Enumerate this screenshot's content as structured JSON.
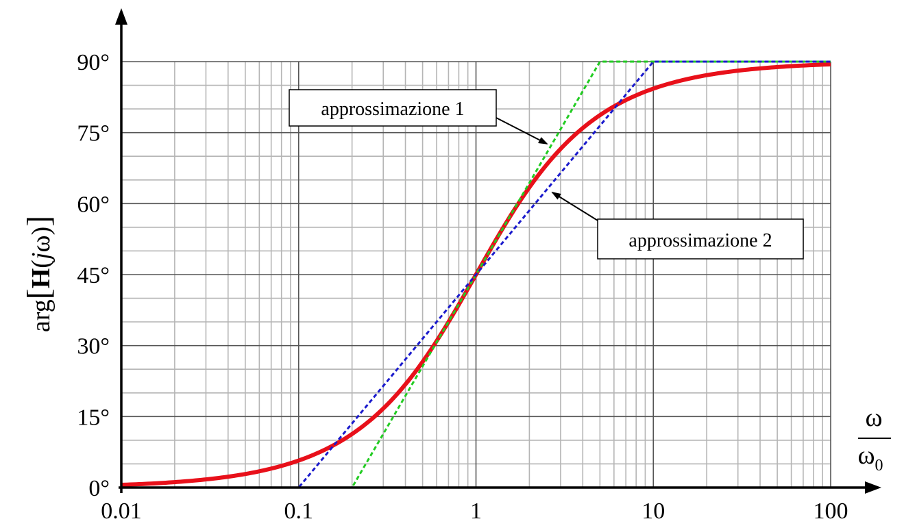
{
  "chart_data": {
    "type": "line",
    "xscale": "log",
    "xlim": [
      0.01,
      100
    ],
    "ylim": [
      0,
      90
    ],
    "grid": true,
    "ylabel": {
      "prefix": "arg",
      "lbracket": "[",
      "H": "H",
      "lparen": "(",
      "j": "j",
      "omega": "ω",
      "rparen": ")",
      "rbracket": "]"
    },
    "xlabel": {
      "numerator": "ω",
      "denominator": "ω",
      "subscript": "0"
    },
    "x_ticks": [
      {
        "value": 0.01,
        "label": "0.01"
      },
      {
        "value": 0.1,
        "label": "0.1"
      },
      {
        "value": 1,
        "label": "1"
      },
      {
        "value": 10,
        "label": "10"
      },
      {
        "value": 100,
        "label": "100"
      }
    ],
    "y_ticks": [
      {
        "value": 0,
        "label": "0°"
      },
      {
        "value": 15,
        "label": "15°"
      },
      {
        "value": 30,
        "label": "30°"
      },
      {
        "value": 45,
        "label": "45°"
      },
      {
        "value": 60,
        "label": "60°"
      },
      {
        "value": 75,
        "label": "75°"
      },
      {
        "value": 90,
        "label": "90°"
      }
    ],
    "series": [
      {
        "key": "exact",
        "color": "#e8101a",
        "style": "solid",
        "x": [
          0.01,
          0.02,
          0.05,
          0.1,
          0.15,
          0.2,
          0.3,
          0.5,
          0.7,
          1,
          1.5,
          2,
          3,
          5,
          7,
          10,
          20,
          50,
          100
        ],
        "y": [
          0.57,
          1.15,
          2.86,
          5.71,
          8.53,
          11.31,
          16.7,
          26.57,
          34.99,
          45.0,
          56.31,
          63.43,
          71.57,
          78.69,
          81.87,
          84.29,
          87.14,
          88.85,
          89.43
        ]
      },
      {
        "key": "approssimazione_1",
        "color": "#22cc22",
        "style": "dashed",
        "x": [
          0.01,
          0.2,
          5,
          100
        ],
        "y": [
          0,
          0,
          90,
          90
        ]
      },
      {
        "key": "approssimazione_2",
        "color": "#1a1acc",
        "style": "dashed",
        "x": [
          0.01,
          0.1,
          10,
          100
        ],
        "y": [
          0,
          0,
          90,
          90
        ]
      }
    ],
    "annotations": [
      {
        "text": "approssimazione 1",
        "target_x": 2.4,
        "target_y": 73.5
      },
      {
        "text": "approssimazione 2",
        "target_x": 2.5,
        "target_y": 63
      }
    ]
  }
}
